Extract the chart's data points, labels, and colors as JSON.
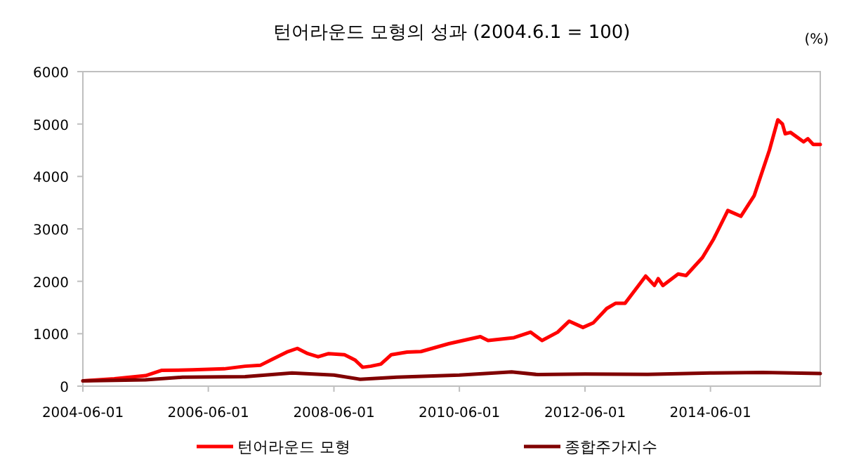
{
  "chart_data": {
    "type": "line",
    "title": "턴어라운드 모형의 성과 (2004.6.1 = 100)",
    "ylabel": "(%)",
    "xlim": [
      "2004-06-01",
      "2016-03-01"
    ],
    "xticks": [
      "2004-06-01",
      "2006-06-01",
      "2008-06-01",
      "2010-06-01",
      "2012-06-01",
      "2014-06-01"
    ],
    "ylim": [
      0,
      6000
    ],
    "yticks": [
      0,
      1000,
      2000,
      3000,
      4000,
      5000,
      6000
    ],
    "grid": false,
    "legend": "bottom",
    "marker": "none",
    "line_style": "solid",
    "series": [
      {
        "name": "턴어라운드 모형",
        "color": "#ff0000",
        "x": [
          "2004-06-01",
          "2004-12-01",
          "2005-06-01",
          "2005-09-01",
          "2006-03-01",
          "2006-09-01",
          "2007-01-01",
          "2007-04-01",
          "2007-07-01",
          "2007-09-01",
          "2007-11-01",
          "2008-01-01",
          "2008-03-01",
          "2008-05-01",
          "2008-08-01",
          "2008-10-01",
          "2008-11-15",
          "2009-01-01",
          "2009-03-01",
          "2009-05-01",
          "2009-08-01",
          "2009-10-20",
          "2010-04-01",
          "2010-10-01",
          "2010-11-15",
          "2011-04-15",
          "2011-07-20",
          "2011-09-25",
          "2011-12-25",
          "2012-03-01",
          "2012-05-20",
          "2012-07-20",
          "2012-10-05",
          "2012-11-25",
          "2013-01-20",
          "2013-05-20",
          "2013-07-10",
          "2013-08-01",
          "2013-08-28",
          "2013-11-25",
          "2014-01-10",
          "2014-04-15",
          "2014-06-20",
          "2014-09-10",
          "2014-11-25",
          "2015-02-10",
          "2015-05-10",
          "2015-06-28",
          "2015-07-25",
          "2015-08-10",
          "2015-09-10",
          "2015-11-25",
          "2015-12-20",
          "2016-01-20",
          "2016-03-01"
        ],
        "values": [
          100,
          140,
          200,
          300,
          310,
          330,
          380,
          400,
          550,
          650,
          720,
          620,
          560,
          620,
          600,
          500,
          360,
          380,
          420,
          600,
          650,
          660,
          810,
          945,
          870,
          925,
          1030,
          870,
          1030,
          1240,
          1120,
          1210,
          1480,
          1580,
          1580,
          2100,
          1920,
          2050,
          1920,
          2140,
          2110,
          2450,
          2810,
          3350,
          3240,
          3630,
          4500,
          5080,
          5000,
          4815,
          4840,
          4660,
          4720,
          4610,
          4610
        ]
      },
      {
        "name": "종합주가지수",
        "color": "#800000",
        "x": [
          "2004-06-01",
          "2005-06-01",
          "2006-01-01",
          "2007-01-01",
          "2007-10-01",
          "2008-06-01",
          "2008-11-01",
          "2009-06-01",
          "2010-06-01",
          "2011-04-01",
          "2011-09-01",
          "2012-06-01",
          "2013-06-01",
          "2014-06-01",
          "2015-04-01",
          "2016-03-01"
        ],
        "values": [
          100,
          120,
          170,
          180,
          250,
          210,
          130,
          170,
          210,
          270,
          220,
          230,
          225,
          250,
          260,
          240
        ]
      }
    ]
  }
}
